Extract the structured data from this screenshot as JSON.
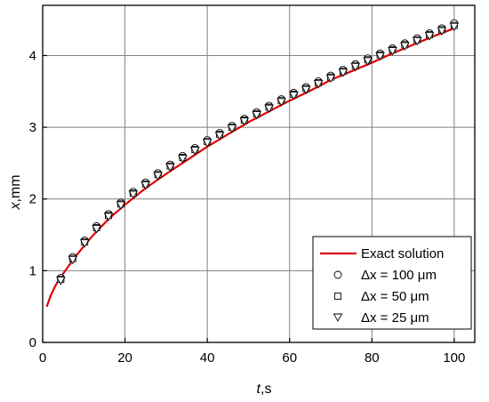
{
  "chart_data": {
    "type": "line",
    "xlabel_var": "t",
    "xlabel_unit": ",s",
    "ylabel_var": "x",
    "ylabel_unit": ",mm",
    "xlim": [
      0,
      105
    ],
    "ylim": [
      0,
      4.7
    ],
    "x_ticks": [
      0,
      20,
      40,
      60,
      80,
      100
    ],
    "y_ticks": [
      0,
      1,
      2,
      3,
      4
    ],
    "grid": true,
    "legend_position": "bottom-right",
    "colors": {
      "exact": "#e00000",
      "markers": "#000000",
      "grid": "#808080"
    },
    "series": [
      {
        "name": "Exact solution",
        "style": "line",
        "x": [
          1,
          2,
          3,
          4,
          5,
          6,
          7,
          8,
          10,
          12,
          14,
          16,
          18,
          20,
          25,
          30,
          35,
          40,
          45,
          50,
          55,
          60,
          65,
          70,
          75,
          80,
          85,
          90,
          95,
          100
        ],
        "y": [
          0.5,
          0.66,
          0.78,
          0.88,
          0.96,
          1.04,
          1.12,
          1.2,
          1.34,
          1.48,
          1.6,
          1.72,
          1.82,
          1.92,
          2.15,
          2.35,
          2.54,
          2.73,
          2.9,
          3.07,
          3.22,
          3.37,
          3.51,
          3.66,
          3.78,
          3.9,
          4.03,
          4.15,
          4.27,
          4.38
        ]
      },
      {
        "name": "Δx = 100 μm",
        "style": "circle",
        "x": [
          4.4,
          7.3,
          10.2,
          13.1,
          16.0,
          19.0,
          22.0,
          25.0,
          28.0,
          31.0,
          34.0,
          37.0,
          40.0,
          43.0,
          46.0,
          49.0,
          52.0,
          55.0,
          58.0,
          61.0,
          64.0,
          67.0,
          70.0,
          73.0,
          76.0,
          79.0,
          82.0,
          85.0,
          88.0,
          91.0,
          94.0,
          97.0,
          100.0
        ],
        "y": [
          0.9,
          1.19,
          1.42,
          1.62,
          1.79,
          1.95,
          2.1,
          2.23,
          2.36,
          2.48,
          2.6,
          2.71,
          2.82,
          2.92,
          3.02,
          3.12,
          3.21,
          3.3,
          3.39,
          3.48,
          3.56,
          3.64,
          3.72,
          3.8,
          3.88,
          3.96,
          4.03,
          4.1,
          4.17,
          4.24,
          4.31,
          4.38,
          4.45
        ]
      },
      {
        "name": "Δx = 50 μm",
        "style": "square",
        "x": [
          4.4,
          7.3,
          10.2,
          13.1,
          16.0,
          19.0,
          22.0,
          25.0,
          28.0,
          31.0,
          34.0,
          37.0,
          40.0,
          43.0,
          46.0,
          49.0,
          52.0,
          55.0,
          58.0,
          61.0,
          64.0,
          67.0,
          70.0,
          73.0,
          76.0,
          79.0,
          82.0,
          85.0,
          88.0,
          91.0,
          94.0,
          97.0,
          100.0
        ],
        "y": [
          0.88,
          1.17,
          1.4,
          1.6,
          1.77,
          1.93,
          2.08,
          2.21,
          2.34,
          2.46,
          2.58,
          2.69,
          2.8,
          2.9,
          3.0,
          3.1,
          3.19,
          3.28,
          3.37,
          3.46,
          3.54,
          3.62,
          3.7,
          3.78,
          3.86,
          3.94,
          4.01,
          4.08,
          4.15,
          4.22,
          4.29,
          4.36,
          4.42
        ]
      },
      {
        "name": "Δx = 25 μm",
        "style": "triangle-down",
        "x": [
          4.4,
          7.3,
          10.2,
          13.1,
          16.0,
          19.0,
          22.0,
          25.0,
          28.0,
          31.0,
          34.0,
          37.0,
          40.0,
          43.0,
          46.0,
          49.0,
          52.0,
          55.0,
          58.0,
          61.0,
          64.0,
          67.0,
          70.0,
          73.0,
          76.0,
          79.0,
          82.0,
          85.0,
          88.0,
          91.0,
          94.0,
          97.0,
          100.0
        ],
        "y": [
          0.86,
          1.15,
          1.38,
          1.58,
          1.75,
          1.91,
          2.06,
          2.19,
          2.32,
          2.44,
          2.56,
          2.67,
          2.78,
          2.88,
          2.98,
          3.08,
          3.17,
          3.26,
          3.35,
          3.44,
          3.52,
          3.6,
          3.68,
          3.76,
          3.84,
          3.92,
          3.99,
          4.06,
          4.13,
          4.2,
          4.27,
          4.34,
          4.4
        ]
      }
    ]
  }
}
